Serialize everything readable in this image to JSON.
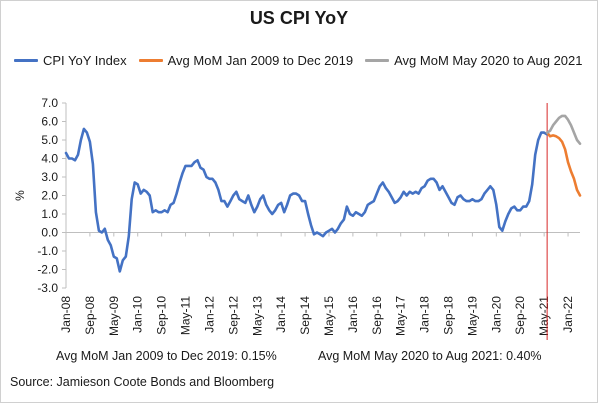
{
  "chart_data": {
    "type": "line",
    "title": "US CPI YoY",
    "ylabel": "%",
    "xlabel": "",
    "ylim": [
      -3.0,
      7.0
    ],
    "yticks": [
      "-3.0",
      "-2.0",
      "-1.0",
      "0.0",
      "1.0",
      "2.0",
      "3.0",
      "4.0",
      "5.0",
      "6.0",
      "7.0"
    ],
    "xticks": [
      "Jan-08",
      "Sep-08",
      "May-09",
      "Jan-10",
      "Sep-10",
      "May-11",
      "Jan-12",
      "Sep-12",
      "May-13",
      "Jan-14",
      "Sep-14",
      "May-15",
      "Jan-16",
      "Sep-16",
      "May-17",
      "Jan-18",
      "Sep-18",
      "May-19",
      "Jan-20",
      "Sep-20",
      "May-21",
      "Jan-22"
    ],
    "x_start": "Jan-08",
    "grid": false,
    "legend": "top",
    "vline": {
      "x": "Jun-21",
      "color": "#d62728"
    },
    "series": [
      {
        "name": "CPI YoY Index",
        "color": "#4472c4",
        "x_start": "Jan-08",
        "values": [
          4.3,
          4.0,
          4.0,
          3.9,
          4.2,
          5.0,
          5.6,
          5.4,
          4.9,
          3.7,
          1.1,
          0.1,
          0.0,
          0.2,
          -0.4,
          -0.7,
          -1.3,
          -1.4,
          -2.1,
          -1.5,
          -1.3,
          -0.2,
          1.8,
          2.7,
          2.6,
          2.1,
          2.3,
          2.2,
          2.0,
          1.1,
          1.2,
          1.1,
          1.1,
          1.2,
          1.1,
          1.5,
          1.6,
          2.1,
          2.7,
          3.2,
          3.6,
          3.6,
          3.6,
          3.8,
          3.9,
          3.5,
          3.4,
          3.0,
          2.9,
          2.9,
          2.7,
          2.3,
          1.7,
          1.7,
          1.4,
          1.7,
          2.0,
          2.2,
          1.8,
          1.7,
          1.6,
          2.0,
          1.5,
          1.1,
          1.4,
          1.8,
          2.0,
          1.5,
          1.2,
          1.0,
          1.2,
          1.5,
          1.6,
          1.1,
          1.5,
          2.0,
          2.1,
          2.1,
          2.0,
          1.7,
          1.7,
          1.0,
          0.4,
          -0.1,
          0.0,
          -0.1,
          -0.2,
          0.0,
          0.1,
          0.2,
          0.0,
          0.2,
          0.5,
          0.7,
          1.4,
          1.0,
          0.9,
          1.1,
          1.0,
          0.9,
          1.1,
          1.5,
          1.6,
          1.7,
          2.1,
          2.5,
          2.7,
          2.4,
          2.2,
          1.9,
          1.6,
          1.7,
          1.9,
          2.2,
          2.0,
          2.2,
          2.1,
          2.2,
          2.1,
          2.4,
          2.5,
          2.8,
          2.9,
          2.9,
          2.7,
          2.3,
          2.5,
          2.2,
          1.9,
          1.6,
          1.5,
          1.9,
          2.0,
          1.8,
          1.7,
          1.7,
          1.8,
          1.7,
          1.7,
          1.8,
          2.1,
          2.3,
          2.5,
          2.3,
          1.5,
          0.3,
          0.1,
          0.6,
          1.0,
          1.3,
          1.4,
          1.2,
          1.2,
          1.4,
          1.4,
          1.7,
          2.6,
          4.2,
          5.0,
          5.4,
          5.4,
          5.3
        ]
      },
      {
        "name": "Avg MoM Jan 2009 to Dec 2019",
        "color": "#ed7d31",
        "x_start": "Jun-21",
        "values": [
          5.4,
          5.2,
          5.25,
          5.2,
          5.1,
          4.9,
          4.5,
          3.8,
          3.3,
          2.9,
          2.3,
          2.0
        ]
      },
      {
        "name": "Avg MoM May 2020 to Aug 2021",
        "color": "#a5a5a5",
        "x_start": "Jun-21",
        "values": [
          5.4,
          5.5,
          5.8,
          6.0,
          6.2,
          6.3,
          6.3,
          6.1,
          5.8,
          5.4,
          5.0,
          4.8
        ]
      }
    ],
    "annotations": [
      "Avg MoM Jan 2009  to Dec 2019:  0.15%",
      "Avg MoM May 2020  to Aug 2021:  0.40%"
    ]
  },
  "source": "Source: Jamieson Coote Bonds and Bloomberg"
}
